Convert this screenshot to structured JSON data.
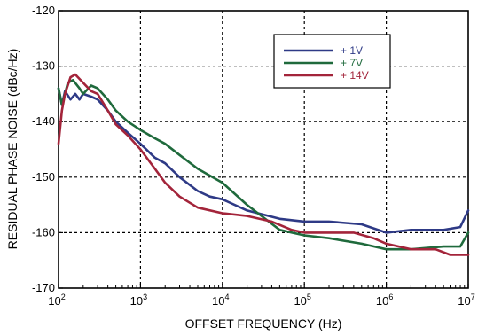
{
  "chart_data": {
    "type": "line",
    "title": "",
    "xlabel": "OFFSET FREQUENCY  (Hz)",
    "ylabel": "RESIDUAL PHASE NOISE (dBc/Hz)",
    "x_scale": "log",
    "xlim": [
      100,
      10000000
    ],
    "ylim": [
      -170,
      -120
    ],
    "x_ticks": [
      {
        "base": "10",
        "exp": "2",
        "value": 100
      },
      {
        "base": "10",
        "exp": "3",
        "value": 1000
      },
      {
        "base": "10",
        "exp": "4",
        "value": 10000
      },
      {
        "base": "10",
        "exp": "5",
        "value": 100000
      },
      {
        "base": "10",
        "exp": "6",
        "value": 1000000
      },
      {
        "base": "10",
        "exp": "7",
        "value": 10000000
      }
    ],
    "y_ticks": [
      {
        "label": "-120",
        "value": -120
      },
      {
        "label": "-130",
        "value": -130
      },
      {
        "label": "-140",
        "value": -140
      },
      {
        "label": "-150",
        "value": -150
      },
      {
        "label": "-160",
        "value": -160
      },
      {
        "label": "-170",
        "value": -170
      }
    ],
    "grid": true,
    "legend_position": "top-right",
    "series": [
      {
        "name": "+ 1V",
        "color": "#2e3a86",
        "points": [
          [
            100,
            -134
          ],
          [
            110,
            -137
          ],
          [
            120,
            -134.5
          ],
          [
            140,
            -136
          ],
          [
            160,
            -135
          ],
          [
            180,
            -136
          ],
          [
            200,
            -135
          ],
          [
            250,
            -135.5
          ],
          [
            300,
            -136
          ],
          [
            400,
            -138
          ],
          [
            500,
            -140
          ],
          [
            700,
            -142
          ],
          [
            1000,
            -144
          ],
          [
            1500,
            -146.5
          ],
          [
            2000,
            -147.5
          ],
          [
            3000,
            -150
          ],
          [
            5000,
            -152.5
          ],
          [
            7000,
            -153.5
          ],
          [
            10000,
            -154
          ],
          [
            20000,
            -156
          ],
          [
            50000,
            -157.5
          ],
          [
            100000,
            -158
          ],
          [
            200000,
            -158
          ],
          [
            500000,
            -158.5
          ],
          [
            1000000,
            -160
          ],
          [
            2000000,
            -159.5
          ],
          [
            5000000,
            -159.5
          ],
          [
            8000000,
            -159
          ],
          [
            10000000,
            -156
          ]
        ]
      },
      {
        "name": "+ 7V",
        "color": "#1f6a3c",
        "points": [
          [
            100,
            -134
          ],
          [
            110,
            -137
          ],
          [
            130,
            -133
          ],
          [
            150,
            -132.5
          ],
          [
            180,
            -134
          ],
          [
            200,
            -135
          ],
          [
            250,
            -133.5
          ],
          [
            300,
            -134
          ],
          [
            400,
            -136
          ],
          [
            500,
            -138
          ],
          [
            700,
            -140
          ],
          [
            1000,
            -141.5
          ],
          [
            1500,
            -143
          ],
          [
            2000,
            -144
          ],
          [
            3000,
            -146
          ],
          [
            5000,
            -148.5
          ],
          [
            10000,
            -151
          ],
          [
            20000,
            -155
          ],
          [
            30000,
            -157
          ],
          [
            50000,
            -159.5
          ],
          [
            100000,
            -160.5
          ],
          [
            200000,
            -161
          ],
          [
            500000,
            -162
          ],
          [
            1000000,
            -163
          ],
          [
            2000000,
            -163
          ],
          [
            5000000,
            -162.5
          ],
          [
            8000000,
            -162.5
          ],
          [
            10000000,
            -160
          ]
        ]
      },
      {
        "name": "+ 14V",
        "color": "#a3243a",
        "points": [
          [
            100,
            -144
          ],
          [
            110,
            -138
          ],
          [
            120,
            -135
          ],
          [
            140,
            -132
          ],
          [
            160,
            -131.5
          ],
          [
            200,
            -133
          ],
          [
            250,
            -134.5
          ],
          [
            300,
            -135
          ],
          [
            400,
            -138
          ],
          [
            500,
            -140.5
          ],
          [
            700,
            -142.5
          ],
          [
            1000,
            -145
          ],
          [
            1500,
            -148.5
          ],
          [
            2000,
            -151
          ],
          [
            3000,
            -153.5
          ],
          [
            5000,
            -155.5
          ],
          [
            10000,
            -156.5
          ],
          [
            20000,
            -157
          ],
          [
            40000,
            -158
          ],
          [
            70000,
            -159.5
          ],
          [
            100000,
            -160
          ],
          [
            200000,
            -160
          ],
          [
            400000,
            -160
          ],
          [
            700000,
            -161
          ],
          [
            1000000,
            -162
          ],
          [
            2000000,
            -163
          ],
          [
            4000000,
            -163
          ],
          [
            6000000,
            -164
          ],
          [
            10000000,
            -164
          ]
        ]
      }
    ]
  }
}
